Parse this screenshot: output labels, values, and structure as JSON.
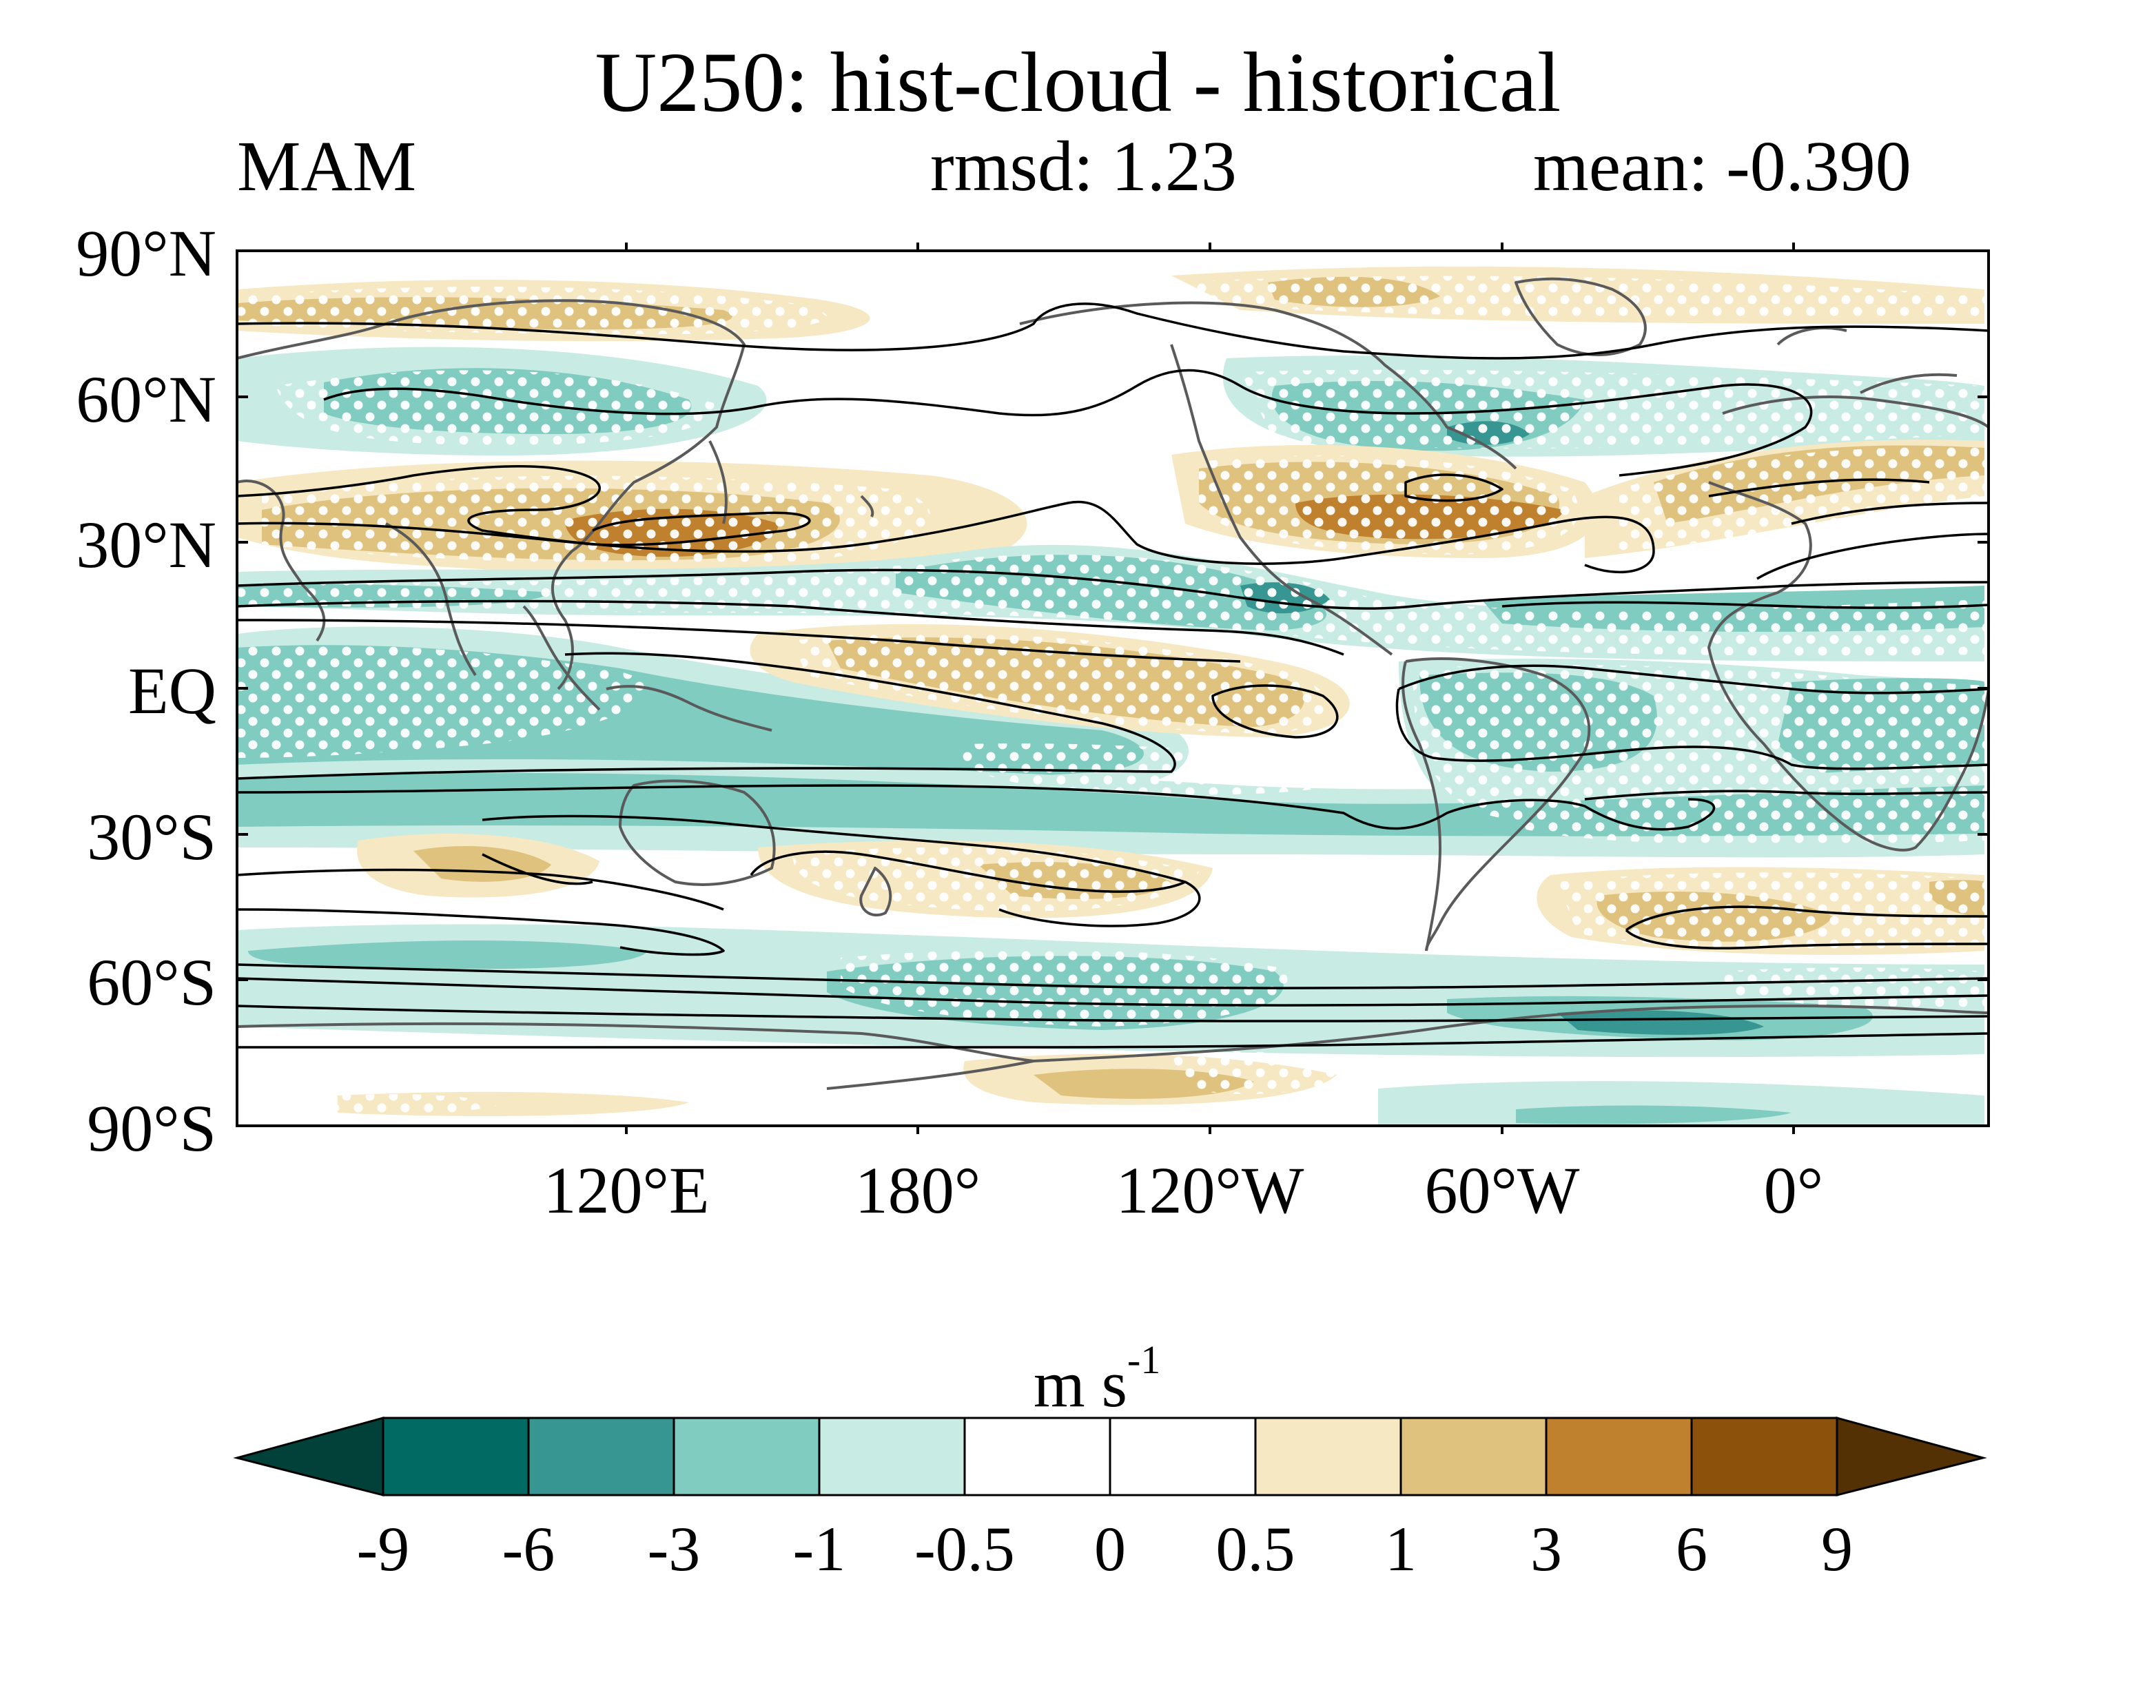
{
  "title": "U250: hist-cloud - historical",
  "season": "MAM",
  "rmsd_text": "rmsd: 1.23",
  "mean_text": "mean: -0.390",
  "lat_labels": [
    "90°N",
    "60°N",
    "30°N",
    "EQ",
    "30°S",
    "60°S",
    "90°S"
  ],
  "lon_labels": [
    "120°E",
    "180°",
    "120°W",
    "60°W",
    "0°"
  ],
  "colorbar": {
    "units": "m s",
    "units_superscript": "-1",
    "tick_labels": [
      "-9",
      "-6",
      "-3",
      "-1",
      "-0.5",
      "0",
      "0.5",
      "1",
      "3",
      "6",
      "9"
    ],
    "colors": [
      "#01413a",
      "#016b63",
      "#379691",
      "#80ccc0",
      "#c8ebe4",
      "#ffffff",
      "#ffffff",
      "#f6e8c3",
      "#dfc27d",
      "#bf812d",
      "#8c510a",
      "#543005"
    ]
  },
  "map": {
    "lon_range": [
      40,
      400
    ],
    "lat_range": [
      -90,
      90
    ],
    "stippling": "white dots mark significant regions",
    "contours": "black lines show climatological zonal wind"
  }
}
